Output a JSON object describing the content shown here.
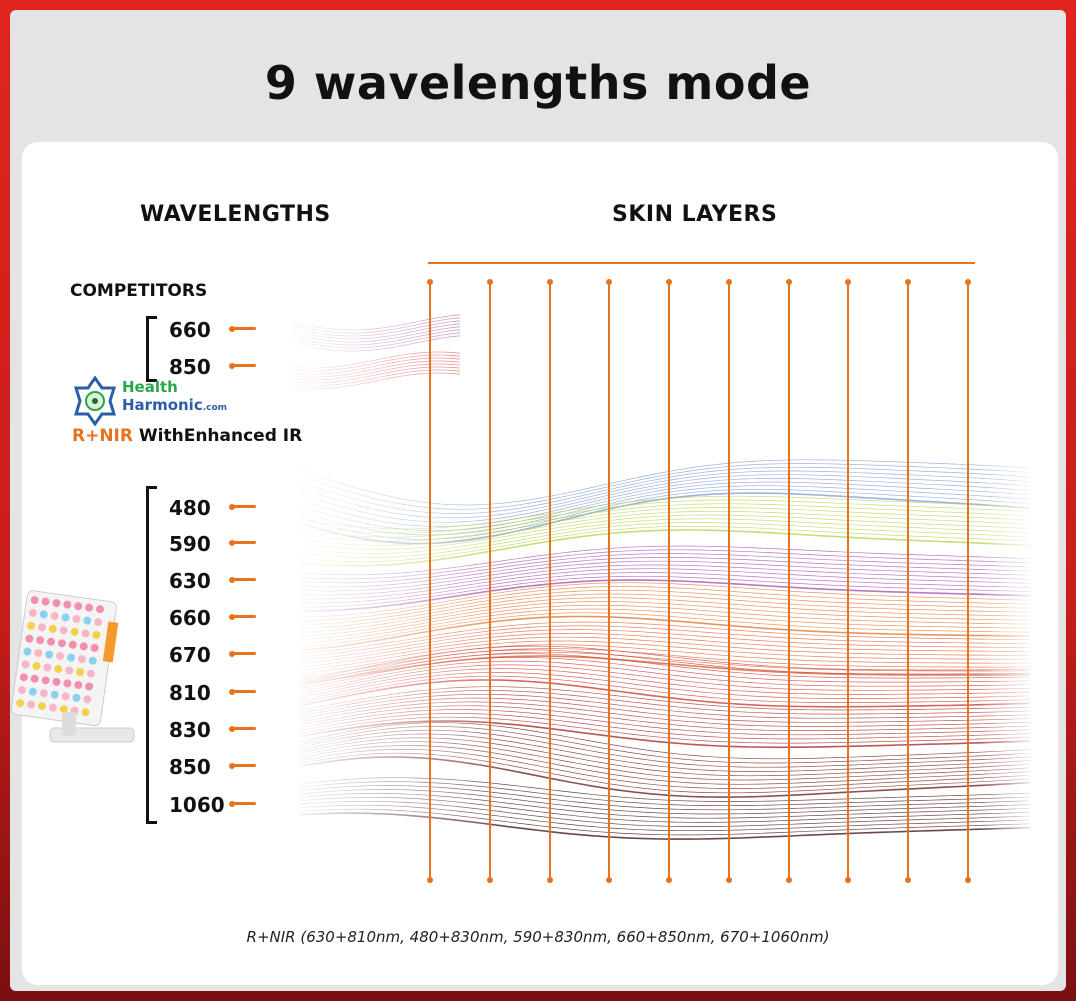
{
  "title": "9 wavelengths mode",
  "headers": {
    "wavelengths": "WAVELENGTHS",
    "skin_layers": "SKIN LAYERS"
  },
  "competitors": {
    "label": "COMPETITORS",
    "wavelengths": [
      "660",
      "850"
    ]
  },
  "brand": {
    "logo_line1": "Health",
    "logo_line2": "Harmonic",
    "logo_suffix": ".com"
  },
  "tagline": {
    "highlight": "R+NIR",
    "rest": " WithEnhanced IR"
  },
  "product_wavelengths": [
    "480",
    "590",
    "630",
    "660",
    "670",
    "810",
    "830",
    "850",
    "1060"
  ],
  "footnote": "R+NIR (630+810nm,  480+830nm,  590+830nm,  660+850nm,  670+1060nm)",
  "colors": {
    "accent": "#e8731f",
    "bands": [
      "#7e9ad0",
      "#b4d34a",
      "#a04aa8",
      "#e0702a",
      "#d9552a",
      "#c8302a",
      "#a0201c",
      "#6a1410",
      "#3a0a08"
    ],
    "competitor_bands": [
      "#a04aa8",
      "#d33a3a"
    ]
  }
}
